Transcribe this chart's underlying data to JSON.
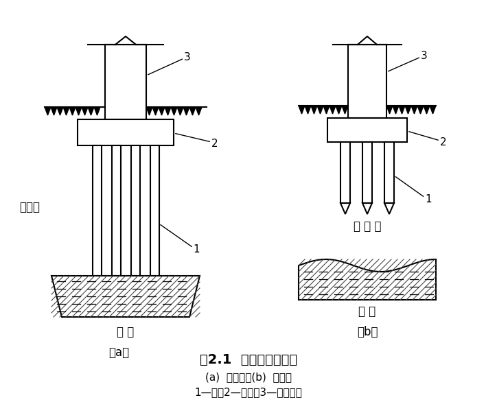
{
  "title": "图2.1  端承桩与摩擦桩",
  "subtitle1": "(a)  端承桩；(b)  摩擦桩",
  "subtitle2": "1—桩；2—承台；3—上部结构",
  "label_a": "（a）",
  "label_b": "（b）",
  "text_soft_left": "软土层",
  "text_hard_left": "硬 层",
  "text_soft_right": "软 土 层",
  "text_hard_right": "硬 层",
  "bg_color": "#ffffff",
  "line_color": "#000000"
}
